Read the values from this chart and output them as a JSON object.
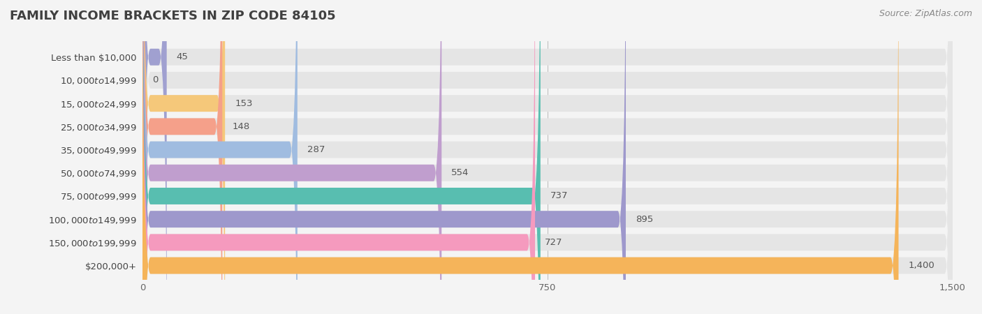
{
  "title": "FAMILY INCOME BRACKETS IN ZIP CODE 84105",
  "source": "Source: ZipAtlas.com",
  "categories": [
    "Less than $10,000",
    "$10,000 to $14,999",
    "$15,000 to $24,999",
    "$25,000 to $34,999",
    "$35,000 to $49,999",
    "$50,000 to $74,999",
    "$75,000 to $99,999",
    "$100,000 to $149,999",
    "$150,000 to $199,999",
    "$200,000+"
  ],
  "values": [
    45,
    0,
    153,
    148,
    287,
    554,
    737,
    895,
    727,
    1400
  ],
  "bar_colors": [
    "#a0a0d0",
    "#f09aaa",
    "#f5c87a",
    "#f5a08a",
    "#a0bce0",
    "#c09ece",
    "#58beb0",
    "#9e98cc",
    "#f59abe",
    "#f5b45a"
  ],
  "xlim": [
    0,
    1500
  ],
  "xticks": [
    0,
    750,
    1500
  ],
  "background_color": "#f4f4f4",
  "bar_background_color": "#e5e5e5",
  "title_fontsize": 13,
  "label_fontsize": 9.5,
  "value_fontsize": 9.5,
  "source_fontsize": 9
}
